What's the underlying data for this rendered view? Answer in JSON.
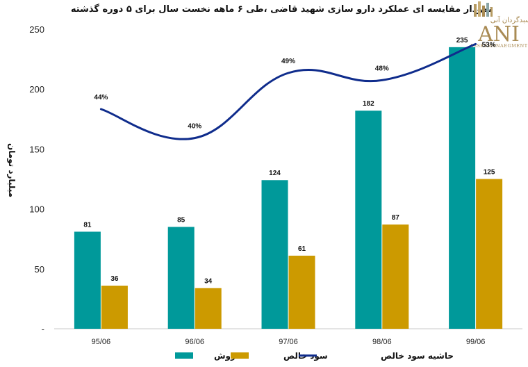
{
  "chart_data": {
    "type": "bar",
    "title": "نمودار مقایسه ای عملکرد دارو سازی شهید قاضی ،طی ۶ ماهه نخست سال برای ۵ دوره گذشته",
    "ylabel": "میلیارد تومان",
    "xlabel": "",
    "ylim": [
      0,
      250
    ],
    "yticks": [
      {
        "value": 0,
        "label": "-"
      },
      {
        "value": 50,
        "label": "50"
      },
      {
        "value": 100,
        "label": "100"
      },
      {
        "value": 150,
        "label": "150"
      },
      {
        "value": 200,
        "label": "200"
      },
      {
        "value": 250,
        "label": "250"
      }
    ],
    "categories": [
      "95/06",
      "96/06",
      "97/06",
      "98/06",
      "99/06"
    ],
    "series": [
      {
        "name": "فروش",
        "type": "bar",
        "color": "#00999a",
        "values": [
          81,
          85,
          124,
          182,
          235
        ]
      },
      {
        "name": "سود خالص",
        "type": "bar",
        "color": "#cc9a00",
        "values": [
          36,
          34,
          61,
          87,
          125
        ]
      }
    ],
    "line_series": {
      "name": "حاشیه سود خالص",
      "type": "line",
      "color": "#0f2c8c",
      "values": [
        44,
        40,
        49,
        48,
        53
      ],
      "labels": [
        "44%",
        "40%",
        "49%",
        "48%",
        "53%"
      ]
    },
    "legend_position": "bottom"
  },
  "logo": {
    "brand": "ANI",
    "persian": "سبدگردان آنی",
    "tagline": "ASSETMANAEGMENT"
  }
}
